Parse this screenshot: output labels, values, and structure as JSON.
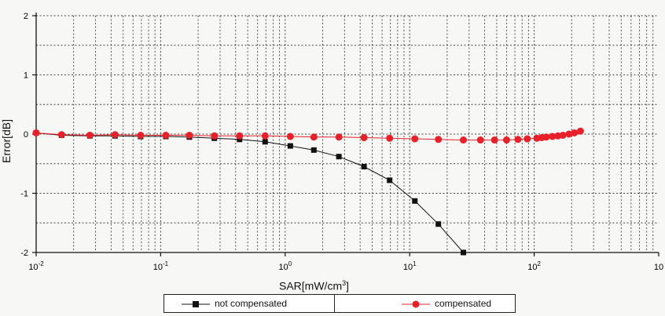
{
  "chart_data": {
    "type": "line",
    "xlabel": "SAR[mW/cm",
    "xlabel_sup": "3",
    "xlabel_tail": "]",
    "ylabel": "Error[dB]",
    "x_scale": "log",
    "xlim": [
      0.01,
      1000
    ],
    "ylim": [
      -2,
      2
    ],
    "grid": true,
    "legend_position": "bottom",
    "y_ticks": [
      "2",
      "1",
      "0",
      "-1",
      "-2"
    ],
    "x_ticks": [
      {
        "base": "10",
        "exp": "-2"
      },
      {
        "base": "10",
        "exp": "-1"
      },
      {
        "base": "10",
        "exp": "0"
      },
      {
        "base": "10",
        "exp": "1"
      },
      {
        "base": "10",
        "exp": "2"
      },
      {
        "base": "10",
        "exp": ""
      }
    ],
    "series": [
      {
        "name": "not compensated",
        "color": "#111111",
        "marker": "square",
        "x": [
          0.01,
          0.016,
          0.027,
          0.043,
          0.069,
          0.11,
          0.17,
          0.27,
          0.43,
          0.69,
          1.1,
          1.7,
          2.7,
          4.3,
          6.9,
          11,
          17,
          27
        ],
        "y": [
          0.02,
          -0.02,
          -0.03,
          -0.03,
          -0.04,
          -0.04,
          -0.05,
          -0.07,
          -0.09,
          -0.13,
          -0.2,
          -0.27,
          -0.38,
          -0.55,
          -0.78,
          -1.13,
          -1.52,
          -2.0
        ]
      },
      {
        "name": "compensated",
        "color": "#e8202a",
        "marker": "circle",
        "x": [
          0.01,
          0.016,
          0.027,
          0.043,
          0.069,
          0.11,
          0.17,
          0.27,
          0.43,
          0.69,
          1.1,
          1.7,
          2.7,
          4.3,
          6.9,
          11,
          17,
          27,
          37,
          48,
          60,
          74,
          88,
          105,
          115,
          125,
          140,
          155,
          170,
          190,
          210,
          235
        ],
        "y": [
          0.02,
          -0.01,
          -0.02,
          -0.01,
          -0.02,
          -0.02,
          -0.02,
          -0.03,
          -0.03,
          -0.03,
          -0.04,
          -0.05,
          -0.05,
          -0.06,
          -0.07,
          -0.08,
          -0.09,
          -0.1,
          -0.1,
          -0.1,
          -0.1,
          -0.09,
          -0.08,
          -0.07,
          -0.06,
          -0.05,
          -0.04,
          -0.03,
          -0.02,
          0.0,
          0.02,
          0.05
        ]
      }
    ]
  }
}
